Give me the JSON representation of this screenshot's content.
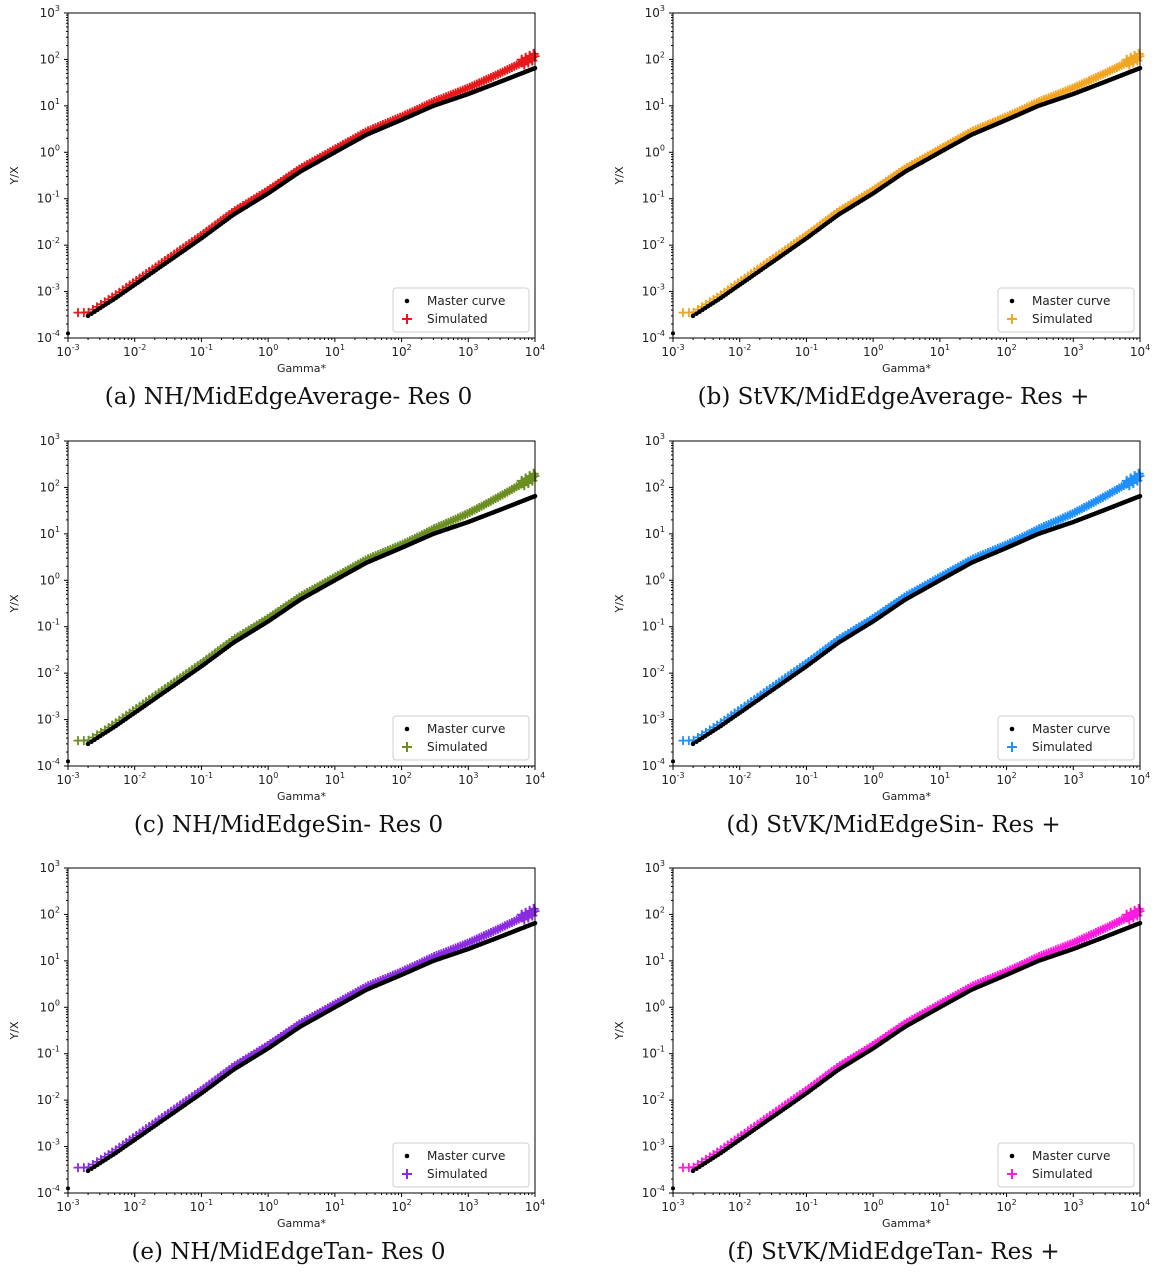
{
  "chart_data": [
    {
      "id": "a",
      "type": "scatter",
      "caption": "(a) NH/MidEdgeAverage- Res 0",
      "xlabel": "Gamma*",
      "ylabel": "Y/X",
      "xscale": "log",
      "yscale": "log",
      "xlim": [
        0.001,
        10000
      ],
      "ylim": [
        0.0001,
        1000
      ],
      "legend_position": "lower-right",
      "series": [
        {
          "name": "Master curve",
          "marker": "dot",
          "color": "#000000"
        },
        {
          "name": "Simulated",
          "marker": "plus",
          "color": "#e8191b",
          "end_value": 100
        }
      ]
    },
    {
      "id": "b",
      "type": "scatter",
      "caption": "(b) StVK/MidEdgeAverage- Res +",
      "xlabel": "Gamma*",
      "ylabel": "Y/X",
      "xscale": "log",
      "yscale": "log",
      "xlim": [
        0.001,
        10000
      ],
      "ylim": [
        0.0001,
        1000
      ],
      "legend_position": "lower-right",
      "series": [
        {
          "name": "Master curve",
          "marker": "dot",
          "color": "#000000"
        },
        {
          "name": "Simulated",
          "marker": "plus",
          "color": "#f2a522",
          "end_value": 100
        }
      ]
    },
    {
      "id": "c",
      "type": "scatter",
      "caption": "(c) NH/MidEdgeSin- Res 0",
      "xlabel": "Gamma*",
      "ylabel": "Y/X",
      "xscale": "log",
      "yscale": "log",
      "xlim": [
        0.001,
        10000
      ],
      "ylim": [
        0.0001,
        1000
      ],
      "legend_position": "lower-right",
      "series": [
        {
          "name": "Master curve",
          "marker": "dot",
          "color": "#000000"
        },
        {
          "name": "Simulated",
          "marker": "plus",
          "color": "#6b8e23",
          "end_value": 150
        }
      ]
    },
    {
      "id": "d",
      "type": "scatter",
      "caption": "(d) StVK/MidEdgeSin- Res +",
      "xlabel": "Gamma*",
      "ylabel": "Y/X",
      "xscale": "log",
      "yscale": "log",
      "xlim": [
        0.001,
        10000
      ],
      "ylim": [
        0.0001,
        1000
      ],
      "legend_position": "lower-right",
      "series": [
        {
          "name": "Master curve",
          "marker": "dot",
          "color": "#000000"
        },
        {
          "name": "Simulated",
          "marker": "plus",
          "color": "#1e90ff",
          "end_value": 150
        }
      ]
    },
    {
      "id": "e",
      "type": "scatter",
      "caption": "(e) NH/MidEdgeTan- Res 0",
      "xlabel": "Gamma*",
      "ylabel": "Y/X",
      "xscale": "log",
      "yscale": "log",
      "xlim": [
        0.001,
        10000
      ],
      "ylim": [
        0.0001,
        1000
      ],
      "legend_position": "lower-right",
      "series": [
        {
          "name": "Master curve",
          "marker": "dot",
          "color": "#000000"
        },
        {
          "name": "Simulated",
          "marker": "plus",
          "color": "#8a2be2",
          "end_value": 100
        }
      ]
    },
    {
      "id": "f",
      "type": "scatter",
      "caption": "(f) StVK/MidEdgeTan- Res +",
      "xlabel": "Gamma*",
      "ylabel": "Y/X",
      "xscale": "log",
      "yscale": "log",
      "xlim": [
        0.001,
        10000
      ],
      "ylim": [
        0.0001,
        1000
      ],
      "legend_position": "lower-right",
      "series": [
        {
          "name": "Master curve",
          "marker": "dot",
          "color": "#000000"
        },
        {
          "name": "Simulated",
          "marker": "plus",
          "color": "#ff1ae0",
          "end_value": 100
        }
      ]
    }
  ],
  "shared_master_curve": {
    "x": [
      0.002,
      0.005,
      0.01,
      0.03,
      0.1,
      0.3,
      1,
      3,
      10,
      30,
      100,
      300,
      1000,
      3000,
      10000
    ],
    "y": [
      0.0003,
      0.0007,
      0.0014,
      0.0042,
      0.014,
      0.045,
      0.13,
      0.38,
      1.0,
      2.4,
      5.0,
      10,
      18,
      33,
      65
    ]
  },
  "x_ticks": [
    "10^-3",
    "10^-2",
    "10^-1",
    "10^0",
    "10^1",
    "10^2",
    "10^3",
    "10^4"
  ],
  "y_ticks": [
    "10^-4",
    "10^-3",
    "10^-2",
    "10^-1",
    "10^0",
    "10^1",
    "10^2",
    "10^3"
  ]
}
